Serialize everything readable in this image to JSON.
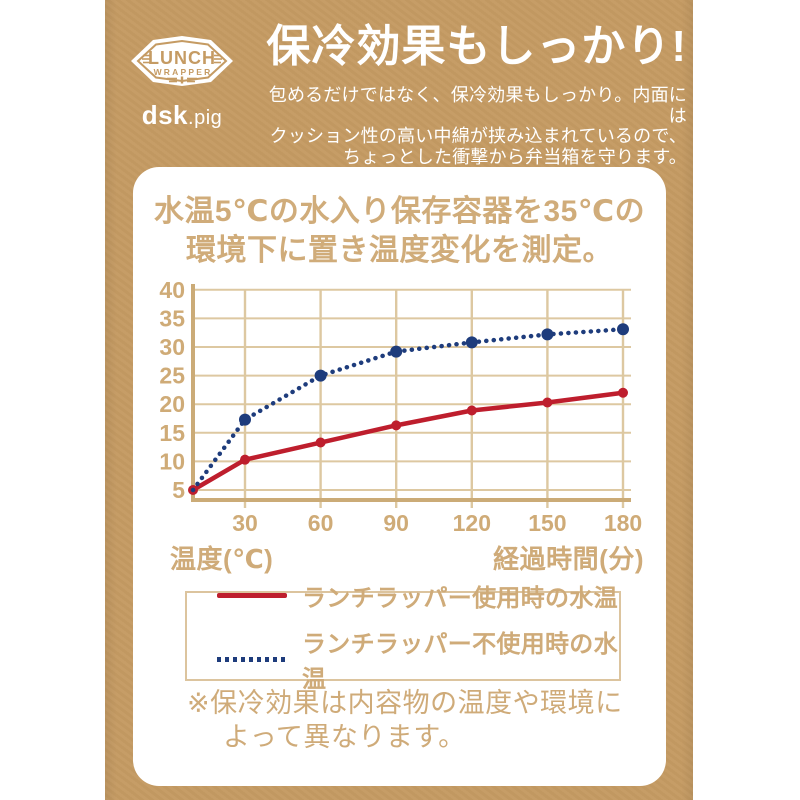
{
  "colors": {
    "kraft": "#c59b63",
    "tan_text": "#cfab79",
    "axis": "#cbab77",
    "grid": "#ddc8a1",
    "red": "#be1e2d",
    "navy": "#1e3c7c",
    "card_bg": "#ffffff"
  },
  "header": {
    "logo": {
      "line1": "LUNCH",
      "line2": "WRAPPER",
      "brand": "dsk",
      "brand_suffix": ".pig"
    },
    "title": "保冷効果もしっかり!",
    "description_lines": [
      "包めるだけではなく、保冷効果もしっかり。内面には",
      "クッション性の高い中綿が挟み込まれているので、",
      "ちょっとした衝撃から弁当箱を守ります。"
    ]
  },
  "card": {
    "title_lines": [
      "水温5℃の水入り保存容器を35℃の",
      "環境下に置き温度変化を測定。"
    ],
    "y_axis_unit": "温度(℃)",
    "x_axis_unit": "経過時間(分)",
    "legend": [
      {
        "label": "ランチラッパー使用時の水温",
        "style": "solid",
        "color": "#be1e2d"
      },
      {
        "label": "ランチラッパー不使用時の水温",
        "style": "dotted",
        "color": "#1e3c7c"
      }
    ],
    "note_prefix": "※",
    "note_lines": [
      "保冷効果は内容物の温度や環境に",
      "よって異なります。"
    ]
  },
  "chart_data": {
    "type": "line",
    "x": [
      0,
      30,
      60,
      90,
      120,
      150,
      180
    ],
    "xticks": [
      30,
      60,
      90,
      120,
      150,
      180
    ],
    "series": [
      {
        "name": "ランチラッパー使用時の水温",
        "color": "#be1e2d",
        "style": "solid",
        "values": [
          5,
          10.3,
          13.3,
          16.3,
          18.9,
          20.3,
          22.0
        ]
      },
      {
        "name": "ランチラッパー不使用時の水温",
        "color": "#1e3c7c",
        "style": "dotted",
        "values": [
          5,
          17.3,
          25.0,
          29.2,
          30.8,
          32.2,
          33.1
        ]
      }
    ],
    "ylim": [
      5,
      40
    ],
    "ytick_step": 5,
    "grid": true,
    "xlabel": "経過時間(分)",
    "ylabel": "温度(℃)",
    "legend_position": "bottom"
  }
}
